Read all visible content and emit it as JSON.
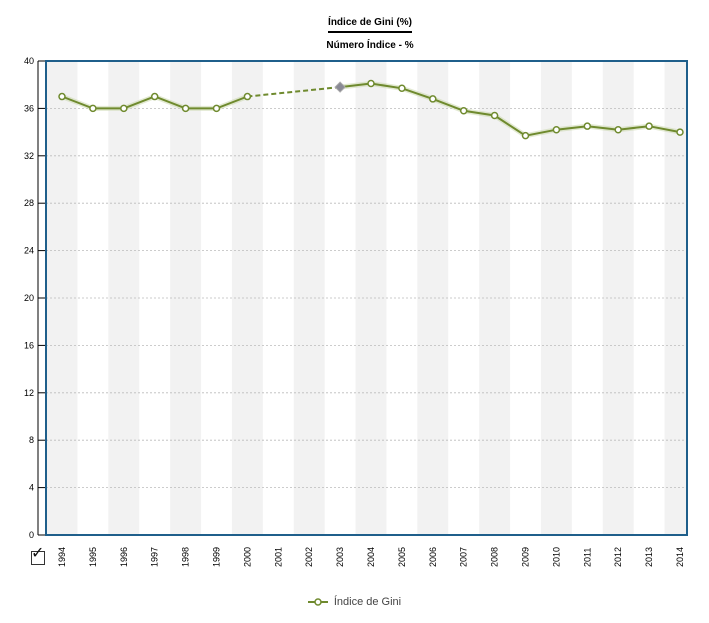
{
  "chart_data": {
    "type": "line",
    "title": "Índice de Gini (%)",
    "subtitle": "Número Índice - %",
    "categories": [
      "1994",
      "1995",
      "1996",
      "1997",
      "1998",
      "1999",
      "2000",
      "2001",
      "2002",
      "2003",
      "2004",
      "2005",
      "2006",
      "2007",
      "2008",
      "2009",
      "2010",
      "2011",
      "2012",
      "2013",
      "2014"
    ],
    "series": [
      {
        "name": "Índice de Gini",
        "color": "#6f8a2e",
        "values": [
          37.0,
          36.0,
          36.0,
          37.0,
          36.0,
          36.0,
          37.0,
          null,
          null,
          37.8,
          38.1,
          37.7,
          36.8,
          35.8,
          35.4,
          33.7,
          34.2,
          34.5,
          34.2,
          34.5,
          34.0
        ],
        "dashed_interpolation": [
          "2000",
          "2003"
        ],
        "highlighted_point": "2003"
      }
    ],
    "ylim": [
      0,
      40
    ],
    "yticks": [
      0,
      4,
      8,
      12,
      16,
      20,
      24,
      28,
      32,
      36,
      40
    ],
    "grid": "horizontal dotted",
    "alternating_column_bands": true,
    "legend": "bottom-center",
    "colors": {
      "frame": "#1f5f8b",
      "band": "#f2f2f2",
      "grid": "#bbbbbb",
      "marker_fill": "#ffffff",
      "highlight": "#8a8a95"
    }
  },
  "checkbox_icon": "check-icon"
}
